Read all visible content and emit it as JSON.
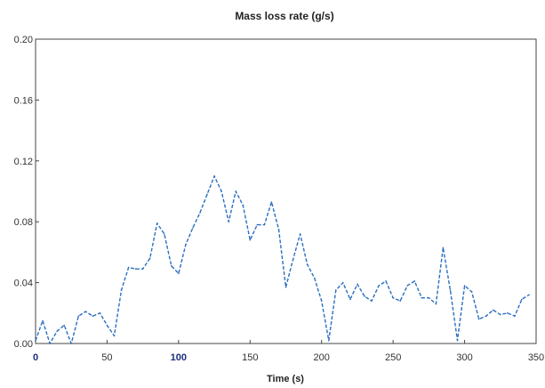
{
  "chart_data": {
    "type": "line",
    "title": "Mass loss rate (g/s)",
    "xlabel": "Time (s)",
    "ylabel": "",
    "xlim": [
      0,
      350
    ],
    "ylim": [
      0,
      0.2
    ],
    "x_ticks": [
      "0",
      "50",
      "100",
      "150",
      "200",
      "250",
      "300",
      "350"
    ],
    "y_ticks": [
      "0.00",
      "0.04",
      "0.08",
      "0.12",
      "0.16",
      "0.20"
    ],
    "grid": false,
    "series": [
      {
        "color": "#2b6fc0",
        "style": "dashed",
        "points": [
          [
            0,
            0.002
          ],
          [
            5,
            0.015
          ],
          [
            10,
            0.0
          ],
          [
            15,
            0.008
          ],
          [
            20,
            0.012
          ],
          [
            25,
            0.0
          ],
          [
            30,
            0.018
          ],
          [
            35,
            0.021
          ],
          [
            40,
            0.018
          ],
          [
            45,
            0.02
          ],
          [
            50,
            0.012
          ],
          [
            55,
            0.005
          ],
          [
            60,
            0.035
          ],
          [
            65,
            0.05
          ],
          [
            70,
            0.049
          ],
          [
            75,
            0.049
          ],
          [
            80,
            0.056
          ],
          [
            85,
            0.079
          ],
          [
            90,
            0.072
          ],
          [
            95,
            0.051
          ],
          [
            100,
            0.046
          ],
          [
            105,
            0.065
          ],
          [
            110,
            0.076
          ],
          [
            115,
            0.086
          ],
          [
            120,
            0.098
          ],
          [
            125,
            0.11
          ],
          [
            130,
            0.1
          ],
          [
            135,
            0.08
          ],
          [
            140,
            0.1
          ],
          [
            145,
            0.091
          ],
          [
            150,
            0.068
          ],
          [
            155,
            0.078
          ],
          [
            160,
            0.078
          ],
          [
            165,
            0.093
          ],
          [
            170,
            0.075
          ],
          [
            175,
            0.037
          ],
          [
            180,
            0.055
          ],
          [
            185,
            0.072
          ],
          [
            190,
            0.052
          ],
          [
            195,
            0.043
          ],
          [
            200,
            0.028
          ],
          [
            205,
            0.002
          ],
          [
            210,
            0.035
          ],
          [
            215,
            0.04
          ],
          [
            220,
            0.029
          ],
          [
            225,
            0.039
          ],
          [
            230,
            0.031
          ],
          [
            235,
            0.028
          ],
          [
            240,
            0.038
          ],
          [
            245,
            0.041
          ],
          [
            250,
            0.03
          ],
          [
            255,
            0.028
          ],
          [
            260,
            0.038
          ],
          [
            265,
            0.041
          ],
          [
            270,
            0.03
          ],
          [
            275,
            0.03
          ],
          [
            280,
            0.026
          ],
          [
            285,
            0.063
          ],
          [
            290,
            0.035
          ],
          [
            295,
            0.002
          ],
          [
            300,
            0.038
          ],
          [
            305,
            0.034
          ],
          [
            310,
            0.016
          ],
          [
            315,
            0.018
          ],
          [
            320,
            0.022
          ],
          [
            325,
            0.019
          ],
          [
            330,
            0.02
          ],
          [
            335,
            0.018
          ],
          [
            340,
            0.029
          ],
          [
            345,
            0.032
          ]
        ]
      }
    ]
  }
}
